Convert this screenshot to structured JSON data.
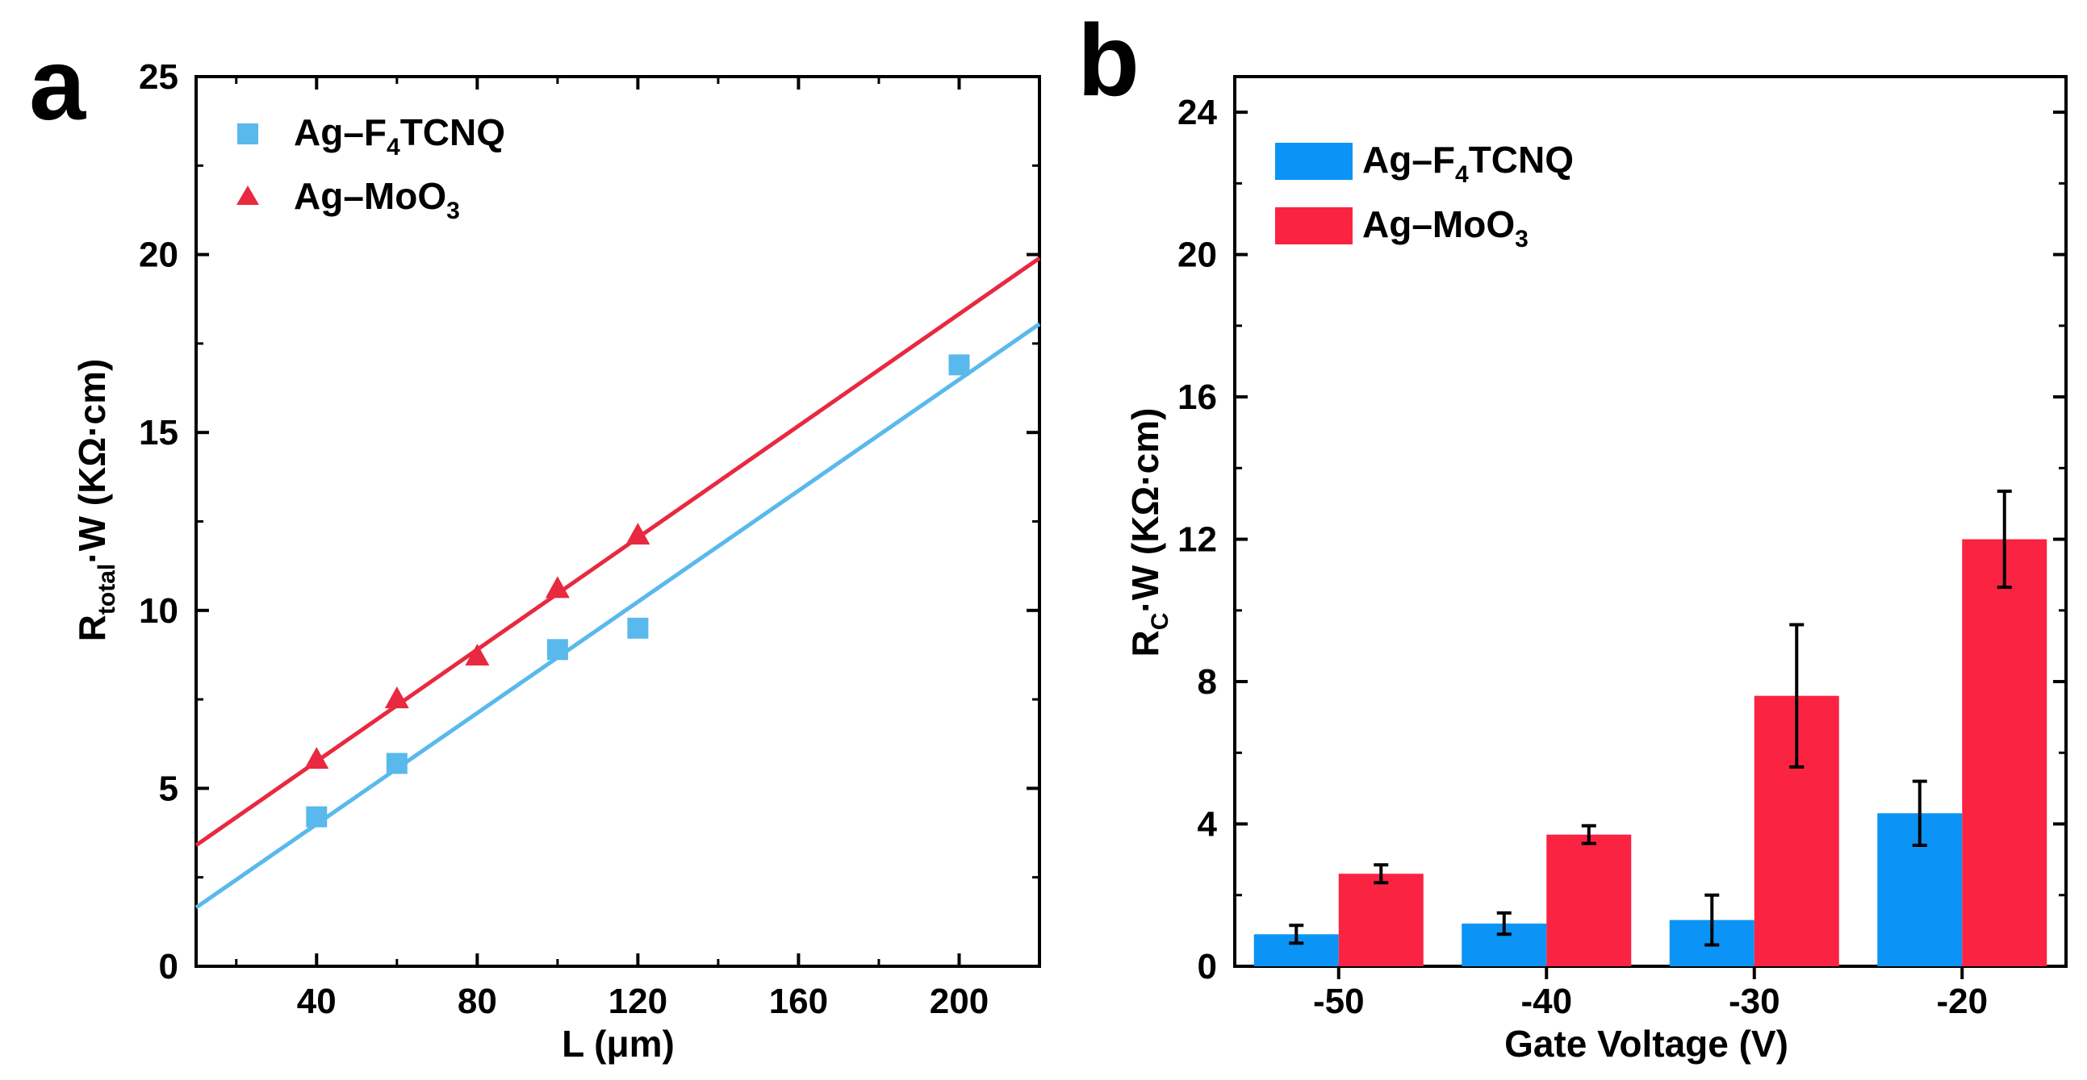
{
  "chart_data": [
    {
      "panel_label": "a",
      "type": "scatter",
      "xlabel": "L (μm)",
      "ylabel": {
        "main": "R",
        "sub": "total",
        "rest": "·W (KΩ·cm)"
      },
      "xlim": [
        10,
        220
      ],
      "ylim": [
        0,
        25
      ],
      "xticks": [
        40,
        80,
        120,
        160,
        200
      ],
      "yticks": [
        0,
        5,
        10,
        15,
        20,
        25
      ],
      "grid": false,
      "legend_position": "top-left",
      "series": [
        {
          "name": "Ag–F4TCNQ",
          "legend": {
            "pre": "Ag–F",
            "sub": "4",
            "post": "TCNQ"
          },
          "marker": "square",
          "color": "#59b9ec",
          "x": [
            40,
            60,
            100,
            120,
            200
          ],
          "y": [
            4.2,
            5.7,
            8.9,
            9.5,
            16.9
          ],
          "fit": {
            "x": [
              10,
              220
            ],
            "y": [
              1.65,
              18.05
            ]
          }
        },
        {
          "name": "Ag–MoO3",
          "legend": {
            "pre": "Ag–MoO",
            "sub": "3",
            "post": ""
          },
          "marker": "triangle",
          "color": "#e8293f",
          "x": [
            40,
            60,
            80,
            100,
            120
          ],
          "y": [
            5.8,
            7.5,
            8.7,
            10.6,
            12.1
          ],
          "fit": {
            "x": [
              10,
              220
            ],
            "y": [
              3.4,
              19.9
            ]
          }
        }
      ]
    },
    {
      "panel_label": "b",
      "type": "bar",
      "xlabel": "Gate Voltage (V)",
      "ylabel": {
        "main": "R",
        "sub": "C",
        "rest": "·W (KΩ·cm)"
      },
      "categories": [
        "-50",
        "-40",
        "-30",
        "-20"
      ],
      "ylim": [
        0,
        25
      ],
      "yticks": [
        0,
        4,
        8,
        12,
        16,
        20,
        24
      ],
      "grid": false,
      "legend_position": "top-left",
      "series": [
        {
          "name": "Ag–F4TCNQ",
          "legend": {
            "pre": "Ag–F",
            "sub": "4",
            "post": "TCNQ"
          },
          "color": "#0b94f5",
          "values": [
            0.9,
            1.2,
            1.3,
            4.3
          ],
          "errors": [
            0.25,
            0.3,
            0.7,
            0.9
          ]
        },
        {
          "name": "Ag–MoO3",
          "legend": {
            "pre": "Ag–MoO",
            "sub": "3",
            "post": ""
          },
          "color": "#fb2342",
          "values": [
            2.6,
            3.7,
            7.6,
            12.0
          ],
          "errors": [
            0.25,
            0.25,
            2.0,
            1.35
          ]
        }
      ]
    }
  ]
}
